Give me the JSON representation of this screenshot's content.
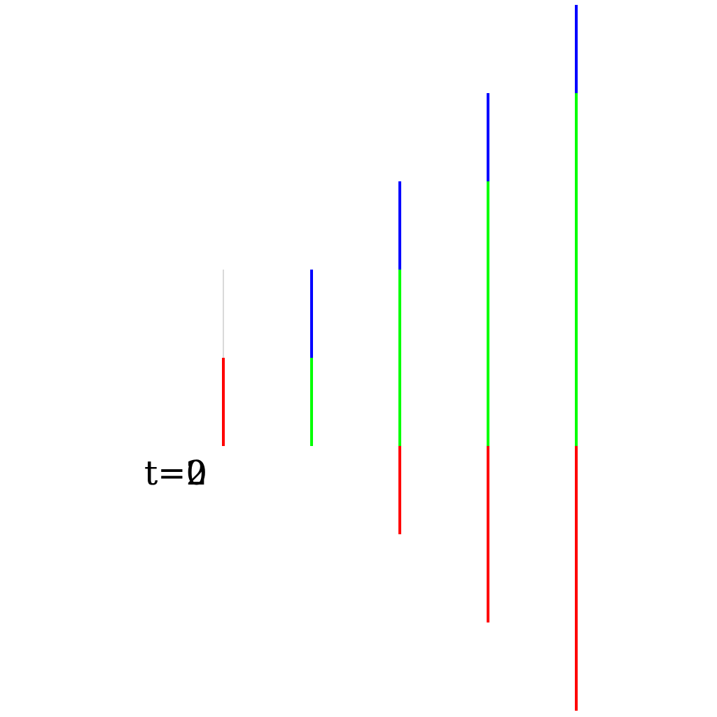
{
  "labels": {
    "a": "t=0",
    "b": "t=2"
  },
  "colors": {
    "red": "#ff0000",
    "green": "#00ff00",
    "blue": "#0000ff",
    "faint": "#d9d9d9",
    "text": "#000000"
  },
  "columns": [
    {
      "id": "c1",
      "segments": [
        {
          "color": "red",
          "from": 0,
          "to": 1
        },
        {
          "color": "faint",
          "from": 1,
          "to": 2
        }
      ]
    },
    {
      "id": "c2",
      "segments": [
        {
          "color": "green",
          "from": 0,
          "to": 1
        },
        {
          "color": "blue",
          "from": 1,
          "to": 2
        }
      ]
    },
    {
      "id": "c3",
      "segments": [
        {
          "color": "red",
          "from": -1,
          "to": 0
        },
        {
          "color": "green",
          "from": 0,
          "to": 2
        },
        {
          "color": "blue",
          "from": 2,
          "to": 3
        }
      ]
    },
    {
      "id": "c4",
      "segments": [
        {
          "color": "red",
          "from": -2,
          "to": 0
        },
        {
          "color": "green",
          "from": 0,
          "to": 3
        },
        {
          "color": "blue",
          "from": 3,
          "to": 4
        }
      ]
    },
    {
      "id": "c5",
      "segments": [
        {
          "color": "red",
          "from": -3,
          "to": 0
        },
        {
          "color": "green",
          "from": 0,
          "to": 4
        },
        {
          "color": "blue",
          "from": 4,
          "to": 5
        }
      ]
    }
  ]
}
